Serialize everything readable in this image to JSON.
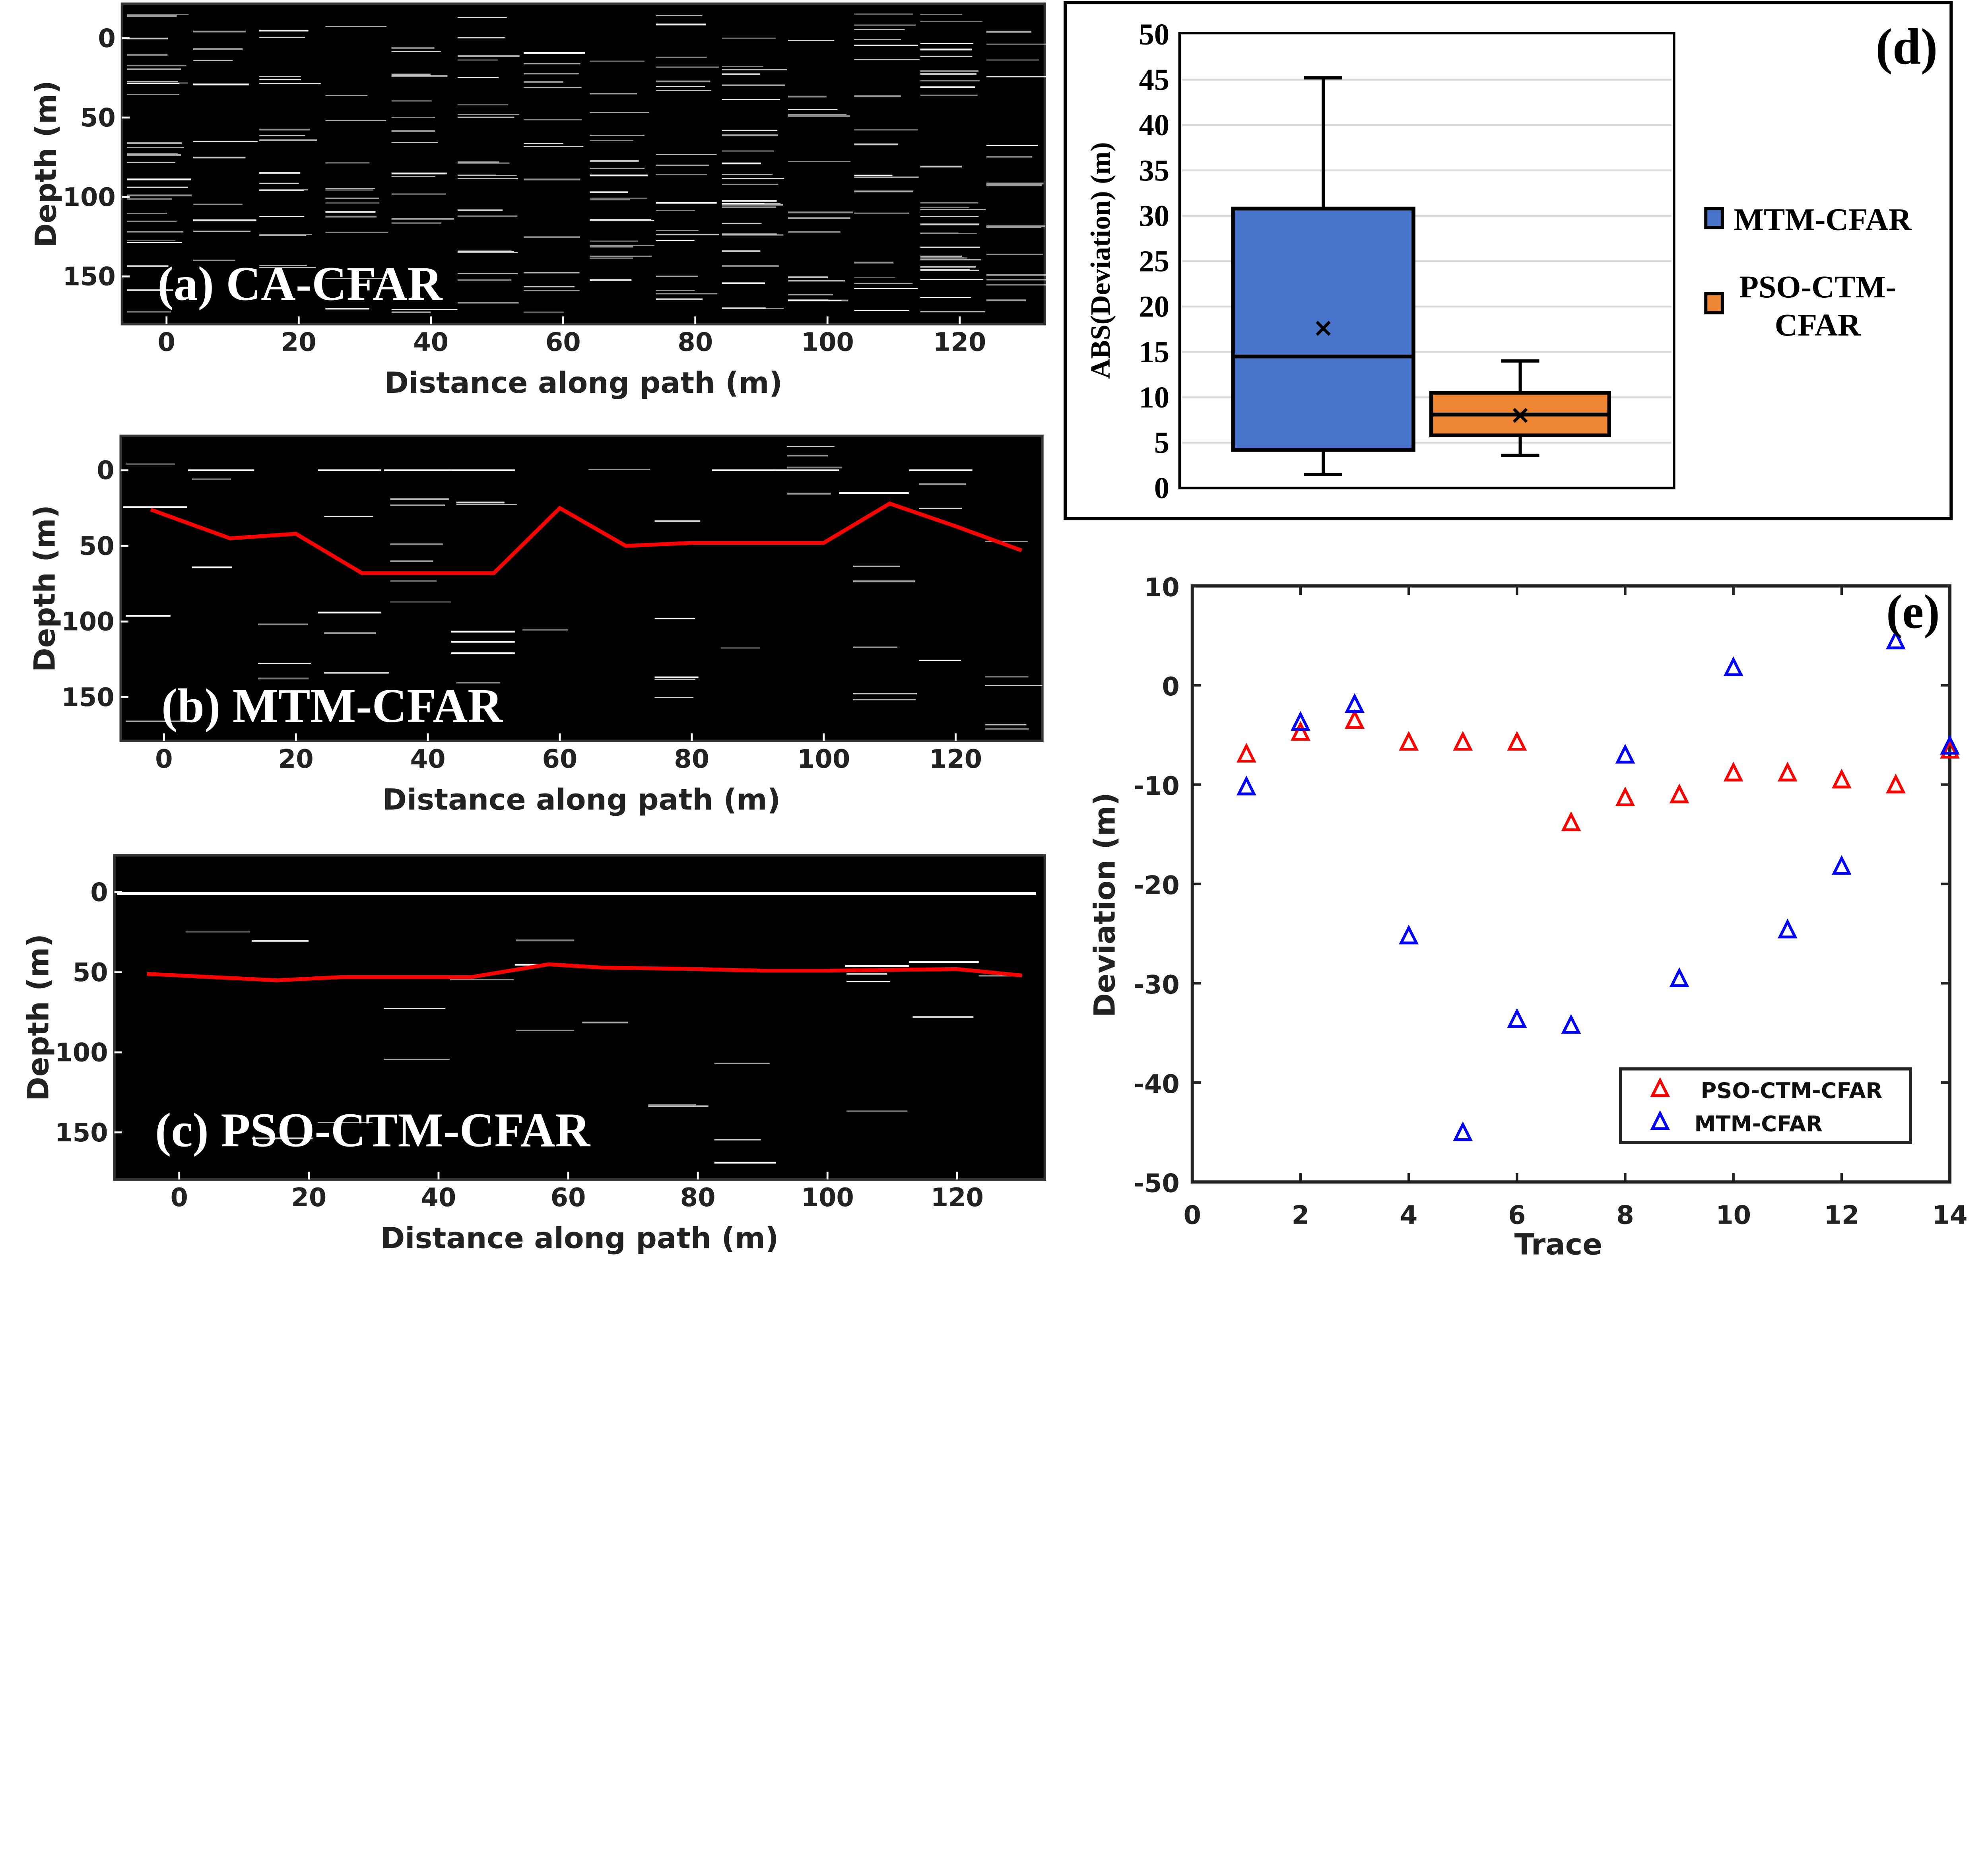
{
  "chart_data": [
    {
      "type": "heatmap",
      "panel": "(a) CA-CFAR",
      "xlabel": "Distance along path (m)",
      "ylabel": "Depth (m)",
      "xticks": [
        0,
        20,
        40,
        60,
        80,
        100,
        120
      ],
      "yticks": [
        0,
        50,
        100,
        150
      ],
      "background": "#000000",
      "reflection_color": "#ffffff"
    },
    {
      "type": "line",
      "panel": "(b) MTM-CFAR",
      "xlabel": "Distance along path (m)",
      "ylabel": "Depth (m)",
      "xticks": [
        0,
        20,
        40,
        60,
        80,
        100,
        120
      ],
      "yticks": [
        0,
        50,
        100,
        150
      ],
      "line_color": "#ff0000",
      "x": [
        -2,
        10,
        20,
        30,
        50,
        60,
        70,
        80,
        100,
        110,
        120,
        130
      ],
      "y": [
        26,
        45,
        42,
        68,
        68,
        25,
        50,
        48,
        48,
        22,
        37,
        53
      ]
    },
    {
      "type": "line",
      "panel": "(c) PSO-CTM-CFAR",
      "xlabel": "Distance along path (m)",
      "ylabel": "Depth (m)",
      "xticks": [
        0,
        20,
        40,
        60,
        80,
        100,
        120
      ],
      "yticks": [
        0,
        50,
        100,
        150
      ],
      "line_color": "#ff0000",
      "x": [
        -5,
        15,
        25,
        45,
        57,
        65,
        80,
        90,
        100,
        120,
        130
      ],
      "y": [
        51,
        55,
        53,
        53,
        45,
        47,
        48,
        49,
        49,
        48,
        52
      ]
    },
    {
      "type": "box",
      "panel": "(d)",
      "ylabel": "ABS(Deviation) (m)",
      "ylim": [
        0,
        50
      ],
      "yticks": [
        0,
        5,
        10,
        15,
        20,
        25,
        30,
        35,
        40,
        45,
        50
      ],
      "grid": true,
      "legend": "right",
      "series": [
        {
          "name": "MTM-CFAR",
          "color": "#4874cb",
          "min": 1.5,
          "q1": 4.2,
          "median": 14.5,
          "q3": 30.8,
          "max": 45.2,
          "mean": 17.7
        },
        {
          "name": "PSO-CTM-CFAR",
          "name_lines": [
            "PSO-CTM-",
            "CFAR"
          ],
          "color": "#ee8532",
          "min": 3.6,
          "q1": 5.8,
          "median": 8.1,
          "q3": 10.5,
          "max": 14,
          "mean": 8.1
        }
      ]
    },
    {
      "type": "scatter",
      "panel": "(e)",
      "xlabel": "Trace",
      "ylabel": "Deviation (m)",
      "xlim": [
        0,
        14
      ],
      "ylim": [
        -50,
        10
      ],
      "xticks": [
        0,
        2,
        4,
        6,
        8,
        10,
        12,
        14
      ],
      "yticks": [
        10,
        0,
        -10,
        -20,
        -30,
        -40,
        -50
      ],
      "legend": "bottom-right",
      "marker": "triangle",
      "x": [
        1,
        2,
        3,
        4,
        5,
        6,
        7,
        8,
        9,
        10,
        11,
        12,
        13,
        14
      ],
      "series": [
        {
          "name": "PSO-CTM-CFAR",
          "color": "#ff0000",
          "values": [
            -7,
            -4.8,
            -3.6,
            -5.8,
            -5.8,
            -5.8,
            -13.9,
            -11.4,
            -11.1,
            -8.9,
            -8.9,
            -9.6,
            -10.1,
            -6.6
          ]
        },
        {
          "name": "MTM-CFAR",
          "color": "#0000ff",
          "values": [
            -10.3,
            -3.8,
            -2,
            -25.3,
            -45.1,
            -33.7,
            -34.3,
            -7.1,
            -29.6,
            1.7,
            -24.7,
            -18.3,
            4.4,
            -6.2
          ]
        }
      ]
    }
  ]
}
